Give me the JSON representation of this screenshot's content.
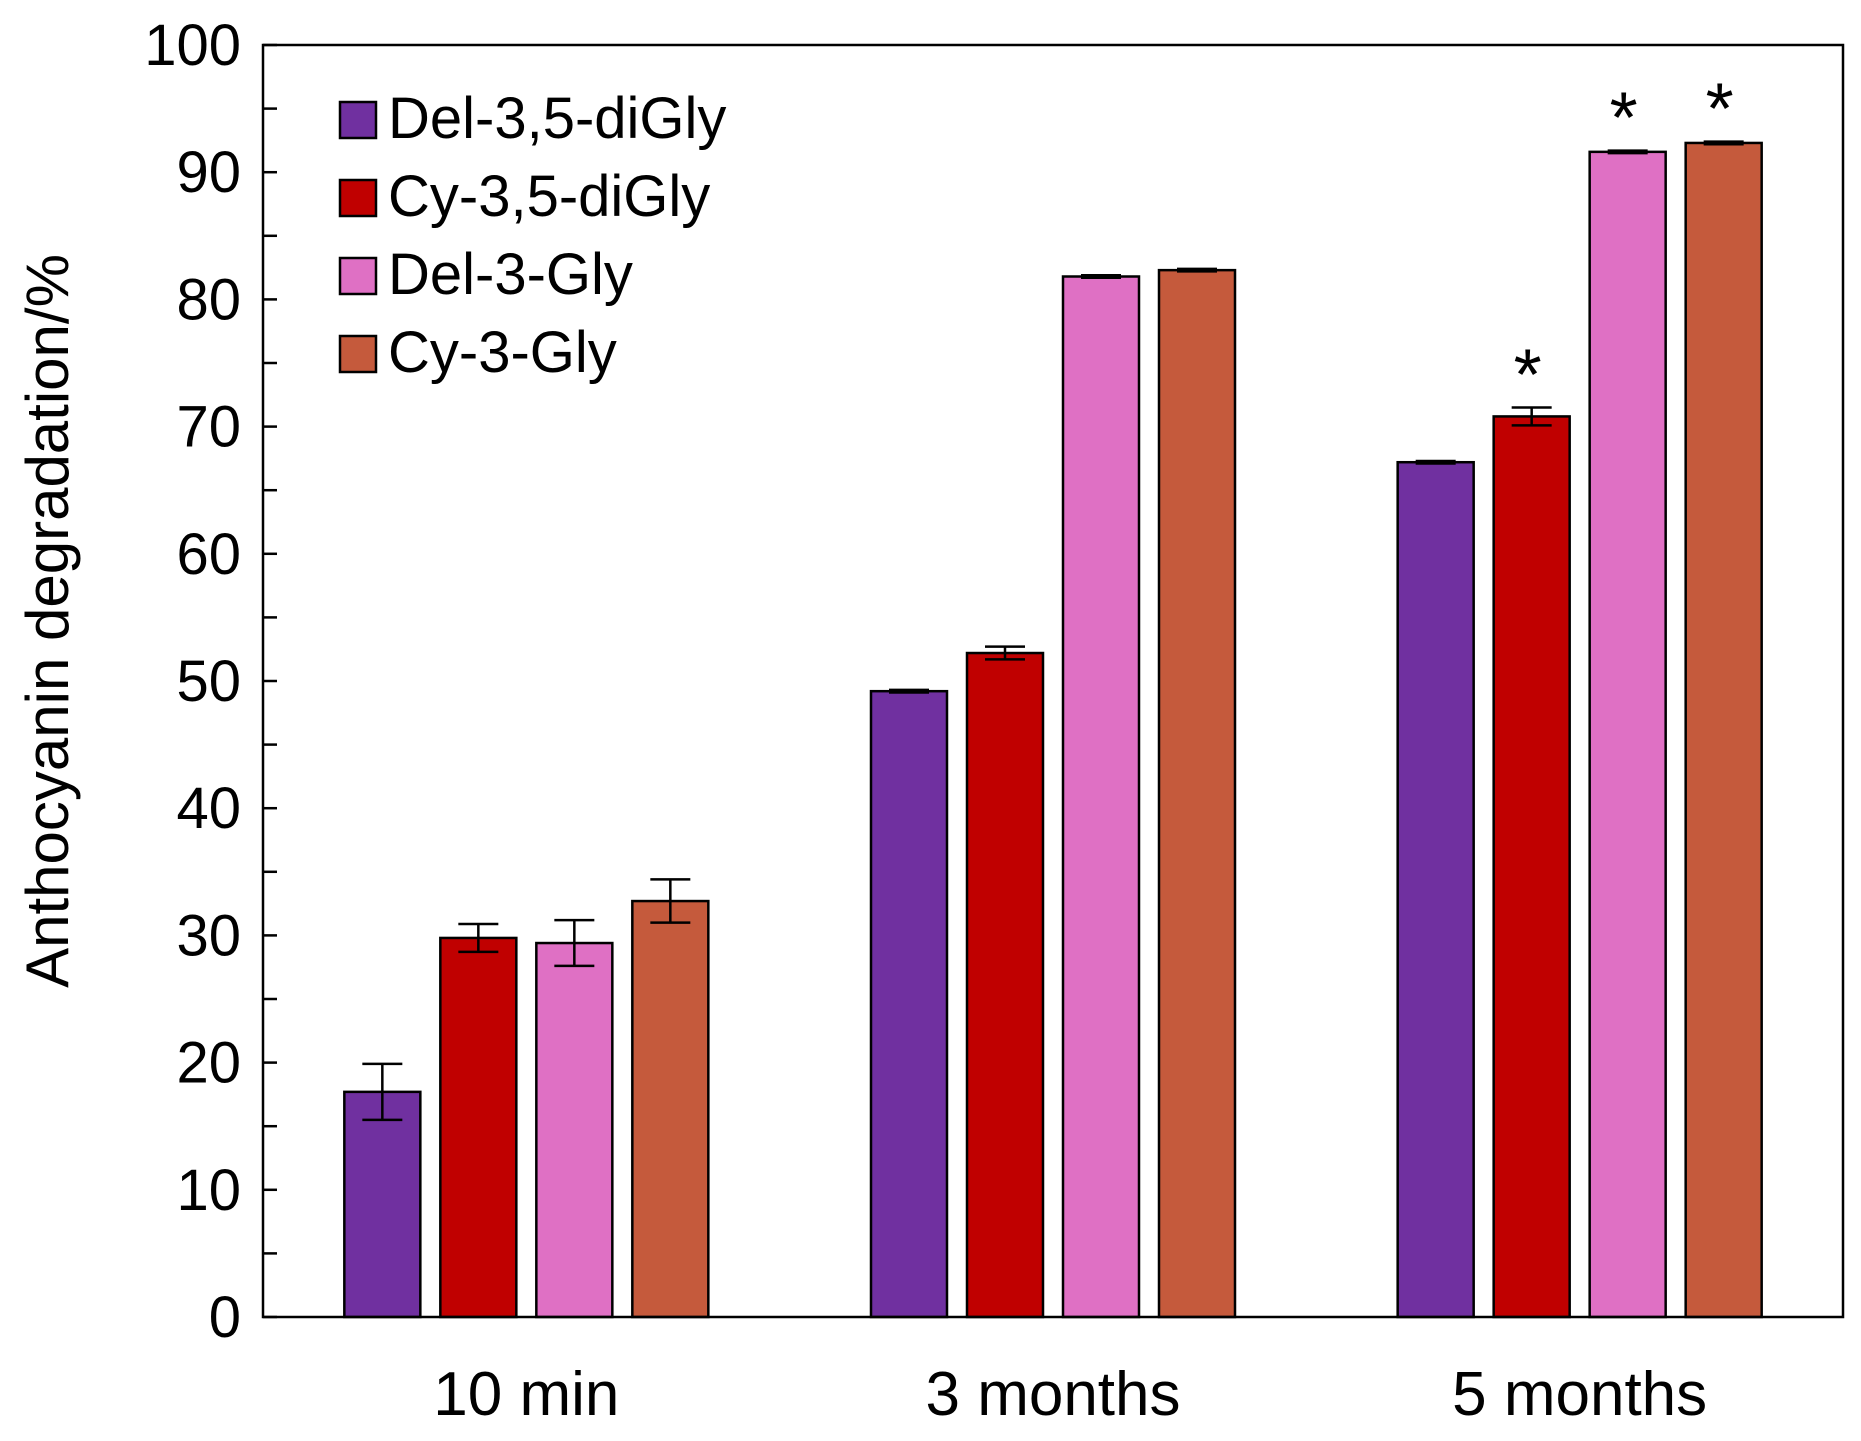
{
  "chart_data": {
    "type": "bar",
    "title": "",
    "xlabel": "",
    "ylabel": "Anthocyanin degradation/%",
    "ylim": [
      0,
      100
    ],
    "yticks": [
      0,
      10,
      20,
      30,
      40,
      50,
      60,
      70,
      80,
      90,
      100
    ],
    "categories": [
      "10 min",
      "3 months",
      "5 months"
    ],
    "legend_position": "top-left",
    "series": [
      {
        "name": "Del-3,5-diGly",
        "color": "#7030a0",
        "values": [
          17.7,
          49.2,
          67.2
        ],
        "errors": [
          2.2,
          0.1,
          0.1
        ],
        "marks": [
          "",
          "",
          ""
        ]
      },
      {
        "name": "Cy-3,5-diGly",
        "color": "#c00000",
        "values": [
          29.8,
          52.2,
          70.8
        ],
        "errors": [
          1.1,
          0.5,
          0.7
        ],
        "marks": [
          "",
          "",
          "*"
        ]
      },
      {
        "name": "Del-3-Gly",
        "color": "#df70c4",
        "values": [
          29.4,
          81.8,
          91.6
        ],
        "errors": [
          1.8,
          0.1,
          0.1
        ],
        "marks": [
          "",
          "",
          "*"
        ]
      },
      {
        "name": "Cy-3-Gly",
        "color": "#c55a3c",
        "values": [
          32.7,
          82.3,
          92.3
        ],
        "errors": [
          1.7,
          0.1,
          0.1
        ],
        "marks": [
          "",
          "",
          "*"
        ]
      }
    ]
  }
}
